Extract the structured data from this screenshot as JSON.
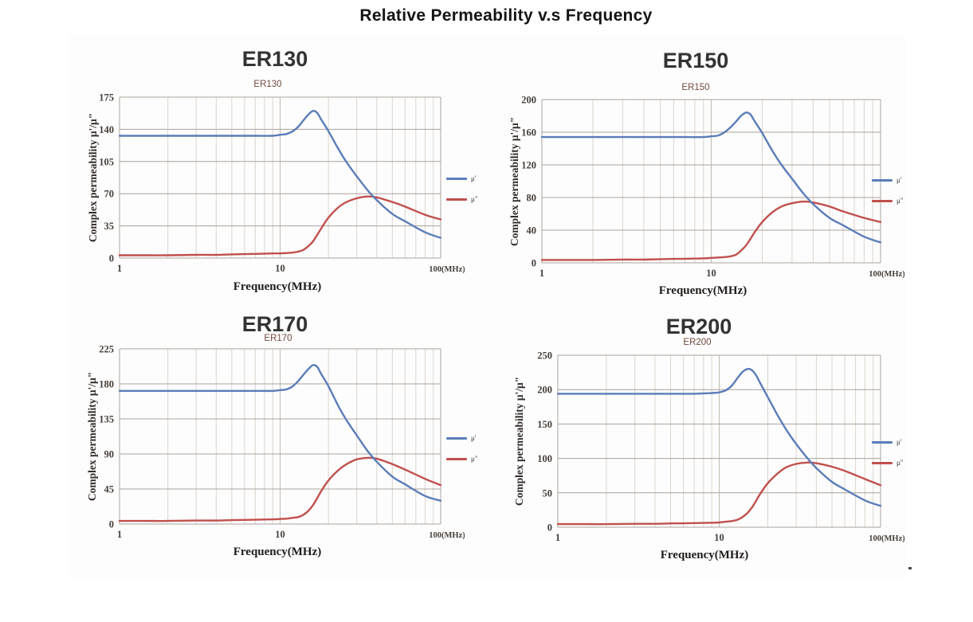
{
  "page": {
    "title": "Relative Permeability v.s Frequency"
  },
  "chart_data": [
    {
      "type": "line",
      "title": "ER130",
      "inner_title": "ER130",
      "ylabel": "Complex permeability  μ'/μ\"",
      "xlabel": "Frequency(MHz)",
      "x_scale": "log",
      "xlim": [
        1,
        100
      ],
      "ylim": [
        0,
        175
      ],
      "yticks": [
        0,
        35,
        70,
        105,
        140,
        175
      ],
      "xticks": [
        {
          "f": 1,
          "label": "1"
        },
        {
          "f": 10,
          "label": "10"
        },
        {
          "f": 100,
          "label": "100(MHz)"
        }
      ],
      "grid": true,
      "legend_position": "right",
      "x": [
        1,
        1.5,
        2,
        3,
        4,
        5,
        7,
        9,
        10,
        11,
        12,
        13,
        14,
        15,
        16,
        17,
        18,
        20,
        23,
        26,
        30,
        35,
        40,
        50,
        60,
        80,
        100
      ],
      "series": [
        {
          "name": "μ'",
          "color": "#5b7db8",
          "values": [
            133,
            133,
            133,
            133,
            133,
            133,
            133,
            133,
            134,
            135,
            138,
            143,
            150,
            156,
            160,
            158,
            151,
            138,
            119,
            104,
            89,
            74,
            63,
            48,
            40,
            28,
            22
          ]
        },
        {
          "name": "μ\"",
          "color": "#c0504d",
          "values": [
            3,
            3,
            3,
            3.5,
            3.5,
            4,
            4.5,
            5,
            5,
            5.5,
            6,
            7,
            9,
            13,
            18,
            25,
            32,
            44,
            55,
            61,
            65,
            67,
            66,
            61,
            56,
            47,
            42
          ]
        }
      ]
    },
    {
      "type": "line",
      "title": "ER150",
      "inner_title": "ER150",
      "ylabel": "Complex permeability  μ'/μ\"",
      "xlabel": "Frequency(MHz)",
      "x_scale": "log",
      "xlim": [
        1,
        100
      ],
      "ylim": [
        0,
        200
      ],
      "yticks": [
        0,
        40,
        80,
        120,
        160,
        200
      ],
      "xticks": [
        {
          "f": 1,
          "label": "1"
        },
        {
          "f": 10,
          "label": "10"
        },
        {
          "f": 100,
          "label": "100(MHz)"
        }
      ],
      "grid": true,
      "legend_position": "right",
      "x": [
        1,
        1.5,
        2,
        3,
        4,
        5,
        7,
        9,
        10,
        11,
        12,
        13,
        14,
        15,
        16,
        17,
        18,
        20,
        23,
        26,
        30,
        35,
        40,
        50,
        60,
        80,
        100
      ],
      "series": [
        {
          "name": "μ'",
          "color": "#5b7db8",
          "values": [
            154,
            154,
            154,
            154,
            154,
            154,
            154,
            154,
            155,
            156,
            160,
            166,
            173,
            180,
            184,
            182,
            174,
            159,
            137,
            120,
            103,
            85,
            72,
            55,
            46,
            32,
            25
          ]
        },
        {
          "name": "μ\"",
          "color": "#c0504d",
          "values": [
            3.5,
            3.5,
            3.5,
            4,
            4,
            4.5,
            5,
            5.5,
            6,
            6.5,
            7,
            8,
            10,
            15,
            21,
            29,
            37,
            50,
            62,
            69,
            73,
            75,
            74,
            69,
            63,
            55,
            50
          ]
        }
      ]
    },
    {
      "type": "line",
      "title": "ER170",
      "inner_title": "ER170",
      "ylabel": "Complex permeability  μ'/μ\"",
      "xlabel": "Frequency(MHz)",
      "x_scale": "log",
      "xlim": [
        1,
        100
      ],
      "ylim": [
        0,
        225
      ],
      "yticks": [
        0,
        45,
        90,
        135,
        180,
        225
      ],
      "xticks": [
        {
          "f": 1,
          "label": "1"
        },
        {
          "f": 10,
          "label": "10"
        },
        {
          "f": 100,
          "label": "100(MHz)"
        }
      ],
      "grid": true,
      "legend_position": "right",
      "x": [
        1,
        1.5,
        2,
        3,
        4,
        5,
        7,
        9,
        10,
        11,
        12,
        13,
        14,
        15,
        16,
        17,
        18,
        20,
        23,
        26,
        30,
        35,
        40,
        50,
        60,
        80,
        100
      ],
      "series": [
        {
          "name": "μ'",
          "color": "#5b7db8",
          "values": [
            171,
            171,
            171,
            171,
            171,
            171,
            171,
            171,
            172,
            173,
            177,
            184,
            192,
            199,
            204,
            202,
            193,
            177,
            152,
            133,
            114,
            94,
            80,
            61,
            51,
            36,
            30
          ]
        },
        {
          "name": "μ\"",
          "color": "#c0504d",
          "values": [
            4,
            4,
            4,
            4.5,
            4.5,
            5,
            5.5,
            6,
            6.5,
            7,
            8,
            9,
            12,
            17,
            24,
            33,
            42,
            56,
            69,
            77,
            83,
            85,
            84,
            77,
            70,
            58,
            50
          ]
        }
      ]
    },
    {
      "type": "line",
      "title": "ER200",
      "inner_title": "ER200",
      "ylabel": "Complex permeability  μ'/μ\"",
      "xlabel": "Frequency(MHz)",
      "x_scale": "log",
      "xlim": [
        1,
        100
      ],
      "ylim": [
        0,
        250
      ],
      "yticks": [
        0,
        50,
        100,
        150,
        200,
        250
      ],
      "xticks": [
        {
          "f": 1,
          "label": "1"
        },
        {
          "f": 10,
          "label": "10"
        },
        {
          "f": 100,
          "label": "100(MHz)"
        }
      ],
      "grid": true,
      "legend_position": "right",
      "x": [
        1,
        1.5,
        2,
        3,
        4,
        5,
        7,
        9,
        10,
        11,
        12,
        13,
        14,
        15,
        16,
        17,
        18,
        20,
        23,
        26,
        30,
        35,
        40,
        50,
        60,
        80,
        100
      ],
      "series": [
        {
          "name": "μ'",
          "color": "#5b7db8",
          "values": [
            194,
            194,
            194,
            194,
            194,
            194,
            194,
            195,
            196,
            199,
            206,
            217,
            226,
            230,
            228,
            220,
            209,
            189,
            163,
            142,
            121,
            101,
            86,
            66,
            55,
            39,
            31
          ]
        },
        {
          "name": "μ\"",
          "color": "#c0504d",
          "values": [
            4.5,
            4.5,
            4.5,
            5,
            5,
            5.5,
            6,
            6.5,
            7,
            8,
            9,
            11,
            15,
            21,
            29,
            39,
            49,
            64,
            78,
            87,
            92,
            94,
            93,
            88,
            82,
            70,
            61
          ]
        }
      ]
    }
  ],
  "style": {
    "grid_h_color": "#aaa29b",
    "grid_minor_color": "#ddd4cc",
    "grid_major_color": "#c3b9b0",
    "tick_text_color": "#463f3a"
  }
}
